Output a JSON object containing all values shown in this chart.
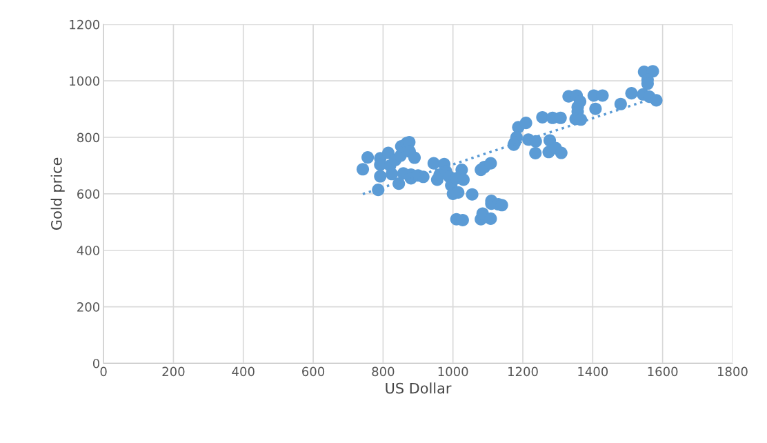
{
  "chart_data": {
    "type": "scatter",
    "xlabel": "US Dollar",
    "ylabel": "Gold price",
    "xlim": [
      0,
      1800
    ],
    "xticks": [
      0,
      200,
      400,
      600,
      800,
      1000,
      1200,
      1400,
      1600,
      1800
    ],
    "ylim": [
      0,
      1200
    ],
    "yticks": [
      0,
      200,
      400,
      600,
      800,
      1000,
      1200
    ],
    "grid": true,
    "marker": "circle",
    "series": [
      {
        "color": "#5b9bd5",
        "x": [
          742,
          756,
          786,
          792,
          792,
          792,
          815,
          820,
          825,
          835,
          845,
          850,
          852,
          858,
          868,
          875,
          876,
          880,
          880,
          890,
          900,
          915,
          945,
          955,
          962,
          975,
          980,
          990,
          995,
          1000,
          1010,
          1015,
          1025,
          1030,
          1055,
          1010,
          1028,
          1080,
          1090,
          1108,
          1080,
          1085,
          1108,
          1110,
          1110,
          1130,
          1140,
          1187,
          1209,
          1182,
          1177,
          1174,
          1216,
          1237,
          1236,
          1277,
          1274,
          1294,
          1310,
          1256,
          1285,
          1308,
          1331,
          1354,
          1364,
          1357,
          1357,
          1351,
          1366,
          1403,
          1428,
          1408,
          1480,
          1511,
          1547,
          1572,
          1557,
          1557,
          1544,
          1562,
          1582
        ],
        "values": [
          687,
          729,
          614,
          726,
          703,
          662,
          745,
          700,
          670,
          720,
          636,
          735,
          768,
          672,
          780,
          783,
          750,
          668,
          655,
          728,
          665,
          660,
          708,
          650,
          668,
          705,
          680,
          660,
          630,
          600,
          655,
          605,
          685,
          650,
          598,
          510,
          507,
          685,
          695,
          708,
          510,
          530,
          512,
          565,
          575,
          563,
          560,
          836,
          851,
          800,
          782,
          774,
          792,
          786,
          744,
          789,
          748,
          762,
          745,
          871,
          869,
          869,
          945,
          948,
          927,
          907,
          891,
          865,
          863,
          948,
          948,
          901,
          918,
          956,
          1032,
          1034,
          1004,
          990,
          952,
          944,
          931
        ]
      },
      {
        "type": "line",
        "color": "#5b9bd5",
        "marker": "none",
        "line_style": "dotted",
        "x": [
          742,
          1551
        ],
        "values": [
          599,
          929
        ]
      }
    ]
  }
}
